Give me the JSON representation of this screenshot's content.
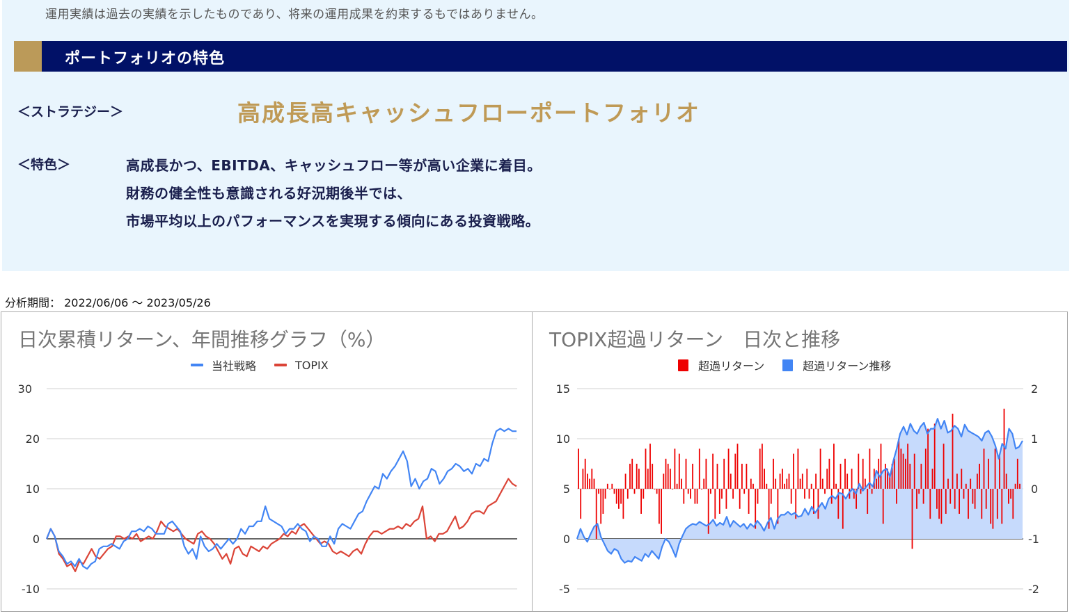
{
  "header": {
    "disclaimer": "運用実績は過去の実績を示したものであり、将来の運用成果を約束するもではありません。",
    "section_title": "ポートフォリオの特色",
    "strategy_label": "＜ストラテジー＞",
    "strategy_name": "高成長高キャッシュフローポートフォリオ",
    "feature_label": "＜特色＞",
    "feature_lines": [
      "高成長かつ、EBITDA、キャッシュフロー等が高い企業に着目。",
      "財務の健全性も意識される好況期後半では、",
      "市場平均以上のパフォーマンスを実現する傾向にある投資戦略。"
    ]
  },
  "colors": {
    "navy": "#011167",
    "gold": "#bb9a59",
    "gold_text": "#bf9a56",
    "panel_bg": "#e9f5fd",
    "strategy_line": "#4285f4",
    "topix_line": "#db4437",
    "excess_bar": "#ee0000",
    "excess_area": "#c6dafc"
  },
  "period": {
    "label": "分析期間：",
    "start": "2022/06/06",
    "separator": "～",
    "end": "2023/05/26"
  },
  "chart_data": [
    {
      "type": "line",
      "title": "日次累積リターン、年間推移グラフ（%）",
      "xlabel": "",
      "ylabel": "",
      "ylim": [
        -10,
        30
      ],
      "yticks": [
        30,
        20,
        10,
        0,
        -10
      ],
      "grid": true,
      "legend_position": "top",
      "series": [
        {
          "name": "当社戦略",
          "color": "#4285f4",
          "values": [
            0,
            2,
            0.5,
            -2.5,
            -3.5,
            -5,
            -4.5,
            -5.5,
            -4,
            -5.5,
            -6,
            -5,
            -4.5,
            -2,
            -1.5,
            -1.5,
            -1,
            -1.5,
            -2,
            -0.5,
            0,
            1.5,
            1.5,
            2,
            1.5,
            2.5,
            2,
            1,
            1,
            1,
            3,
            3.5,
            2.5,
            1.5,
            -1.5,
            -3,
            -2,
            -4,
            0.5,
            -1.5,
            -2.5,
            -2,
            -1,
            -2,
            -1,
            0,
            -1,
            0,
            2,
            1,
            2.5,
            2.5,
            3.5,
            3.5,
            6.5,
            4,
            3.5,
            3,
            2.5,
            1,
            2,
            2,
            3,
            2,
            1.5,
            -0.5,
            0.5,
            0,
            -1.5,
            -1.5,
            0.5,
            -1,
            2,
            3,
            2.5,
            2,
            3.5,
            5,
            5.5,
            7.5,
            9,
            10.5,
            10,
            13,
            12,
            13.5,
            14.5,
            16,
            17.5,
            15.5,
            10.5,
            12,
            10,
            11.5,
            12,
            14,
            13.5,
            11,
            12,
            13.5,
            14,
            15,
            14.5,
            13.5,
            14,
            13,
            15,
            14.5,
            16,
            15.5,
            19,
            21.5,
            22,
            21.5,
            22,
            21.5,
            21.5
          ]
        },
        {
          "name": "TOPIX",
          "color": "#db4437",
          "values": [
            0,
            2,
            0.5,
            -3,
            -4,
            -5.5,
            -5,
            -6.5,
            -4.5,
            -5,
            -3.5,
            -2,
            -3.5,
            -4,
            -3,
            -2,
            -1.5,
            0.5,
            0.5,
            0,
            0.5,
            0,
            1,
            -0.5,
            0,
            0.5,
            0,
            1.5,
            3.5,
            2.5,
            2,
            1.5,
            2,
            1,
            0,
            -0.5,
            -1,
            1,
            1.5,
            0.5,
            0,
            -1,
            -2.5,
            -4,
            -3,
            -5,
            -2,
            -1.5,
            -3,
            -3.5,
            -1.5,
            -2,
            -2.5,
            -1.5,
            -2,
            -1,
            -0.5,
            0,
            1,
            0.5,
            1.5,
            1,
            2.5,
            3,
            2,
            1,
            0,
            -1,
            -0.5,
            -1,
            -2.5,
            -3,
            -2.5,
            -3,
            -3.5,
            -2.5,
            -2,
            -3,
            -1,
            0.5,
            1.5,
            1.5,
            1,
            1.5,
            2,
            2,
            2.5,
            2,
            3,
            2.5,
            3.5,
            4,
            6.5,
            0,
            0.5,
            -0.5,
            1,
            1,
            1.5,
            3,
            4.5,
            2,
            2.5,
            3.5,
            5,
            5.5,
            5.5,
            5,
            6.5,
            7,
            7.5,
            9,
            10.5,
            12,
            11,
            10.5
          ]
        }
      ]
    },
    {
      "type": "bar+area",
      "title": "TOPIX超過リターン　日次と推移",
      "xlabel": "",
      "ylim_left": [
        -5,
        15
      ],
      "yticks_left": [
        15,
        10,
        5,
        0,
        -5
      ],
      "ylim_right": [
        -2,
        2
      ],
      "yticks_right": [
        2,
        1,
        0,
        -1,
        -2
      ],
      "grid": true,
      "legend_position": "top",
      "series": [
        {
          "name": "超過リターン",
          "axis": "right",
          "type": "bar",
          "color": "#ee0000",
          "values": [
            0.8,
            -0.6,
            0.4,
            0.6,
            0.3,
            0.2,
            0.4,
            0.2,
            -1.0,
            -0.1,
            -0.7,
            -0.5,
            -0.2,
            0.1,
            0.0,
            0.1,
            -0.1,
            -0.3,
            -0.4,
            -0.3,
            -0.6,
            0.3,
            -0.2,
            0.5,
            0.6,
            -0.1,
            0.5,
            0.4,
            -0.5,
            -0.2,
            0.8,
            0.4,
            0.9,
            0.5,
            0.0,
            -0.1,
            -0.7,
            -0.9,
            0.3,
            0.6,
            0.5,
            0.4,
            0.0,
            0.8,
            0.1,
            0.7,
            0.2,
            -0.3,
            0.6,
            -0.1,
            -0.2,
            0.5,
            -0.3,
            -0.3,
            0.8,
            0.0,
            0.2,
            0.6,
            -0.9,
            -0.1,
            0.7,
            -0.6,
            0.5,
            -0.5,
            -0.2,
            0.6,
            -0.4,
            0.8,
            0.3,
            -0.2,
            0.7,
            0.9,
            -0.4,
            0.5,
            -0.1,
            0.5,
            -0.5,
            0.2,
            0.1,
            -0.8,
            -0.3,
            0.8,
            0.9,
            0.4,
            0.1,
            -0.8,
            -0.3,
            0.6,
            0.2,
            -0.7,
            0.3,
            0.4,
            0.1,
            0.2,
            0.3,
            -0.3,
            0.7,
            -0.6,
            0.8,
            0.2,
            0.3,
            -0.2,
            0.4,
            -0.2,
            0.1,
            -0.5,
            0.3,
            -0.6,
            0.8,
            0.2,
            -0.1,
            0.4,
            0.6,
            -0.3,
            0.9,
            0.1,
            -0.6,
            0.5,
            -0.8,
            0.6,
            0.3,
            -0.2,
            0.4,
            -0.2,
            -0.4,
            0.7,
            -0.1,
            0.6,
            0.2,
            -0.5,
            0.8,
            -0.1,
            0.4,
            0.2,
            0.6,
            0.9,
            -0.7,
            0.5,
            0.4,
            0.3,
            0.5,
            0.6,
            -0.3,
            1.0,
            0.8,
            0.7,
            0.6,
            0.9,
            0.5,
            -1.2,
            0.7,
            -0.4,
            -0.1,
            0.5,
            -0.3,
            0.8,
            1.2,
            -0.6,
            0.4,
            1.3,
            -0.4,
            -0.6,
            -0.7,
            0.9,
            -0.5,
            0.2,
            -0.3,
            1.5,
            -0.4,
            0.3,
            -0.5,
            0.4,
            -0.2,
            0.1,
            -0.6,
            0.2,
            -0.3,
            -0.4,
            0.3,
            0.5,
            -0.6,
            0.8,
            -0.4,
            0.6,
            -0.7,
            -0.8,
            0.8,
            -0.6,
            0.7,
            -0.7,
            1.6,
            0.3,
            -0.3,
            -0.2,
            -0.6,
            0.1,
            0.6,
            0.1
          ]
        },
        {
          "name": "超過リターン推移",
          "axis": "left",
          "type": "area",
          "color": "#4285f4",
          "values": [
            0,
            1,
            0.2,
            -0.3,
            0.5,
            1.2,
            1.5,
            0.2,
            -0.5,
            -1.2,
            -1.5,
            -1,
            -1.2,
            -2,
            -2.4,
            -2.2,
            -2.3,
            -1.8,
            -2,
            -2.2,
            -1.5,
            -1.8,
            -1.2,
            -1.6,
            -2,
            -0.8,
            0,
            -0.3,
            -1,
            -1.8,
            -0.5,
            0.3,
            1,
            1.3,
            1.5,
            1.4,
            1.7,
            1.5,
            1.3,
            1.5,
            1.9,
            1.3,
            1.6,
            1.4,
            2.2,
            1.2,
            1.8,
            1.5,
            1.2,
            1.5,
            1.0,
            1.5,
            1.2,
            1.8,
            1.4,
            0.8,
            1.6,
            2.1,
            1.0,
            2.0,
            2.4,
            2.4,
            2.7,
            2.4,
            2.6,
            2.2,
            2.3,
            3.0,
            2.4,
            3.2,
            2.6,
            3.1,
            3.6,
            3.0,
            4.0,
            4.3,
            4.0,
            4.6,
            4.5,
            4.0,
            4.6,
            5.0,
            4.5,
            5.5,
            4.8,
            5.2,
            5.6,
            5.2,
            6.8,
            6.2,
            6.8,
            7.0,
            6.2,
            7.8,
            9.0,
            10.5,
            11.2,
            10.4,
            11.5,
            10.8,
            10.5,
            11.2,
            11.6,
            10.5,
            11.0,
            11.0,
            12.0,
            11.0,
            11.8,
            10.6,
            10.8,
            11.3,
            11.0,
            10.2,
            11.4,
            10.8,
            10.6,
            10.4,
            10.2,
            9.8,
            10.6,
            10.8,
            10.2,
            9.3,
            8.0,
            9.5,
            9.0,
            11.0,
            10.5,
            9.0,
            9.2,
            9.8
          ]
        }
      ]
    }
  ],
  "charts": {
    "left": {
      "title": "日次累積リターン、年間推移グラフ（%）",
      "legend": [
        "当社戦略",
        "TOPIX"
      ],
      "y_ticks": [
        "30",
        "20",
        "10",
        "0",
        "-10"
      ]
    },
    "right": {
      "title": "TOPIX超過リターン　日次と推移",
      "legend": [
        "超過リターン",
        "超過リターン推移"
      ],
      "y_ticks_left": [
        "15",
        "10",
        "5",
        "0",
        "-5"
      ],
      "y_ticks_right": [
        "2",
        "1",
        "0",
        "-1",
        "-2"
      ]
    }
  }
}
